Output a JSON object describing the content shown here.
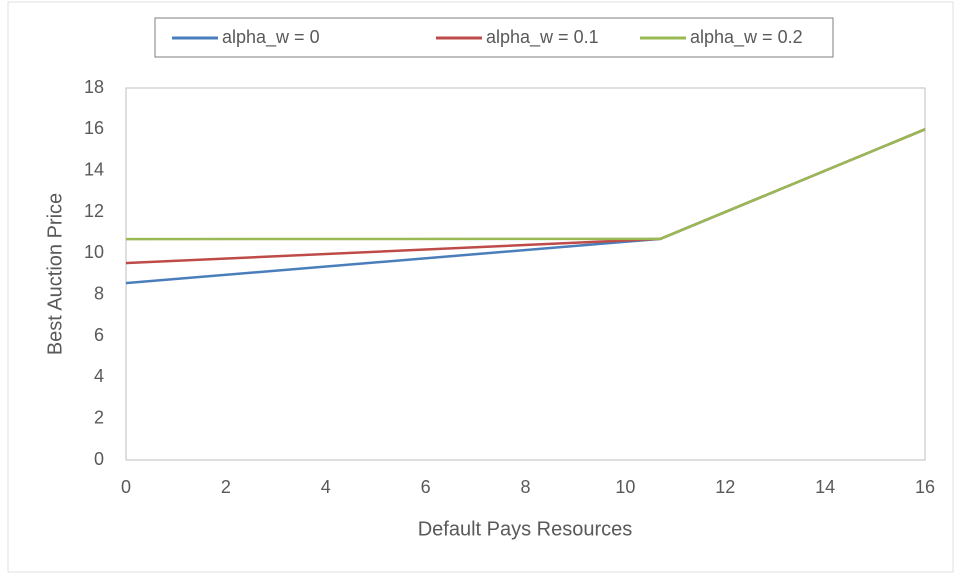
{
  "chart_data": {
    "type": "line",
    "xlabel": "Default Pays Resources",
    "ylabel": "Best Auction Price",
    "x": [
      0,
      10.7,
      16
    ],
    "series": [
      {
        "name": "alpha_w = 0",
        "color": "#4a7ebb",
        "values": [
          8.56,
          10.7,
          16
        ]
      },
      {
        "name": "alpha_w = 0.1",
        "color": "#be4b48",
        "values": [
          9.53,
          10.7,
          16
        ]
      },
      {
        "name": "alpha_w = 0.2",
        "color": "#98b954",
        "values": [
          10.69,
          10.7,
          16
        ]
      }
    ],
    "xlim": [
      0,
      16
    ],
    "xticks": [
      0,
      2,
      4,
      6,
      8,
      10,
      12,
      14,
      16
    ],
    "ylim": [
      0,
      18
    ],
    "yticks": [
      0,
      2,
      4,
      6,
      8,
      10,
      12,
      14,
      16,
      18
    ],
    "grid": false,
    "legend": "top"
  }
}
